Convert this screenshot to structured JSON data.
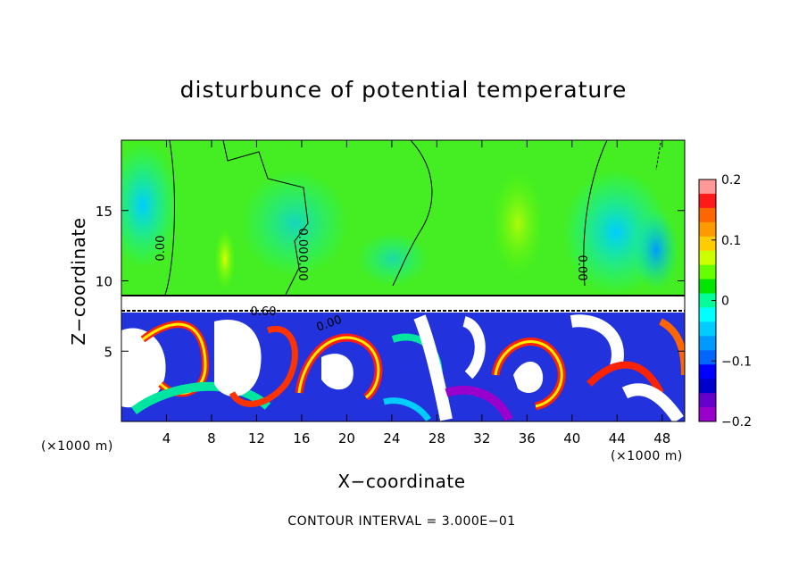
{
  "chart_data": {
    "type": "heatmap",
    "title": "disturbunce of potential temperature",
    "xlabel": "X−coordinate",
    "ylabel": "Z−coordinate",
    "x_unit_label": "(×1000 m)",
    "x_unit_label_right": "(×1000 m)",
    "xlim": [
      0,
      50
    ],
    "ylim": [
      0,
      20
    ],
    "x_ticks": [
      4,
      8,
      12,
      16,
      20,
      24,
      28,
      32,
      36,
      40,
      44,
      48
    ],
    "y_ticks": [
      5,
      10,
      15
    ],
    "contour_interval_text": "CONTOUR INTERVAL = 3.000E−01",
    "contour_labels": [
      "0.00",
      "0.00",
      "0.00",
      "0.00",
      "0.60",
      "0.00"
    ],
    "colorbar": {
      "range": [
        -0.2,
        0.2
      ],
      "ticks": [
        "0.2",
        "0.1",
        "0",
        "−0.1",
        "−0.2"
      ],
      "colors": [
        "#ff9999",
        "#ff1a1a",
        "#ff6600",
        "#ff9900",
        "#ffcc00",
        "#ccff00",
        "#66ff00",
        "#00e600",
        "#00ff99",
        "#00ffff",
        "#00ccff",
        "#0099ff",
        "#0066ff",
        "#0000ff",
        "#0000cc",
        "#6600cc",
        "#9900cc"
      ]
    },
    "grid": false,
    "legend": "colorbar-right"
  }
}
